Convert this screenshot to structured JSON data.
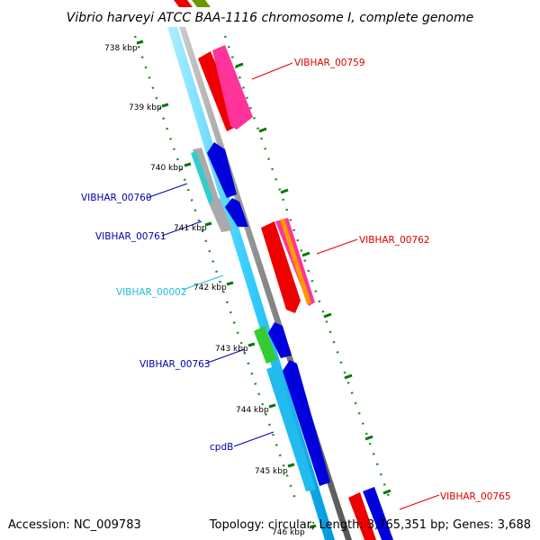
{
  "title": "Vibrio harveyi ATCC BAA-1116 chromosome I, complete genome",
  "footer": {
    "accession": "Accession: NC_009783",
    "topology": "Topology: circular; Length: 3,765,351 bp; Genes: 3,688"
  },
  "ticks": [
    "738 kbp",
    "739 kbp",
    "740 kbp",
    "741 kbp",
    "742 kbp",
    "743 kbp",
    "744 kbp",
    "745 kbp",
    "746 kbp"
  ],
  "genes": [
    {
      "id": "VIBHAR_00759",
      "label": "VIBHAR_00759",
      "color": "#dd0000"
    },
    {
      "id": "VIBHAR_00760",
      "label": "VIBHAR_00760",
      "color": "#0000aa"
    },
    {
      "id": "VIBHAR_00761",
      "label": "VIBHAR_00761",
      "color": "#0000aa"
    },
    {
      "id": "VIBHAR_00762",
      "label": "VIBHAR_00762",
      "color": "#dd0000"
    },
    {
      "id": "VIBHAR_00002",
      "label": "VIBHAR_00002",
      "color": "#22bbdd"
    },
    {
      "id": "VIBHAR_00763",
      "label": "VIBHAR_00763",
      "color": "#0000aa"
    },
    {
      "id": "cpdB",
      "label": "cpdB",
      "color": "#0000aa"
    },
    {
      "id": "VIBHAR_00765",
      "label": "VIBHAR_00765",
      "color": "#dd0000"
    }
  ],
  "colors": {
    "backbone": "#888888",
    "cds": "#33ccff",
    "tick": "#007700",
    "forward_red": "#ee0000",
    "forward_pink": "#ff3399",
    "reverse_blue": "#0000dd",
    "gray_gene": "#aaaaaa",
    "green_gene": "#33cc33",
    "orange_gene": "#ff9900",
    "olive": "#669900"
  }
}
